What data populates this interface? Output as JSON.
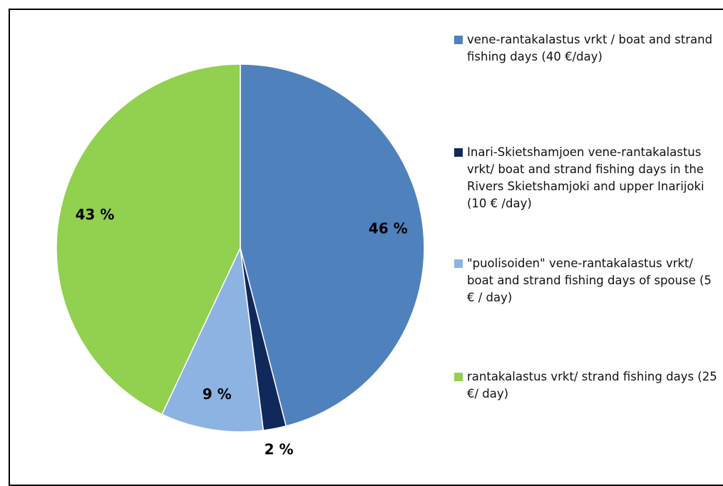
{
  "chart_data": {
    "type": "pie",
    "categories": [
      "vene-rantakalastus vrkt / boat and strand fishing  days (40 €/day)",
      "Inari-Skietshamjoen vene-rantakalastus vrkt/ boat and strand fishing days in the Rivers Skietshamjoki and upper Inarijoki (10 € /day)",
      "\"puolisoiden\" vene-rantakalastus vrkt/  boat and strand  fishing days of spouse (5 € / day)",
      "rantakalastus vrkt/ strand fishing days (25 €/ day)"
    ],
    "values": [
      46,
      2,
      9,
      43
    ],
    "value_labels": [
      "46 %",
      "2 %",
      "9 %",
      "43 %"
    ],
    "colors": [
      "#4f81bd",
      "#10285a",
      "#8db3e2",
      "#92d050"
    ]
  }
}
